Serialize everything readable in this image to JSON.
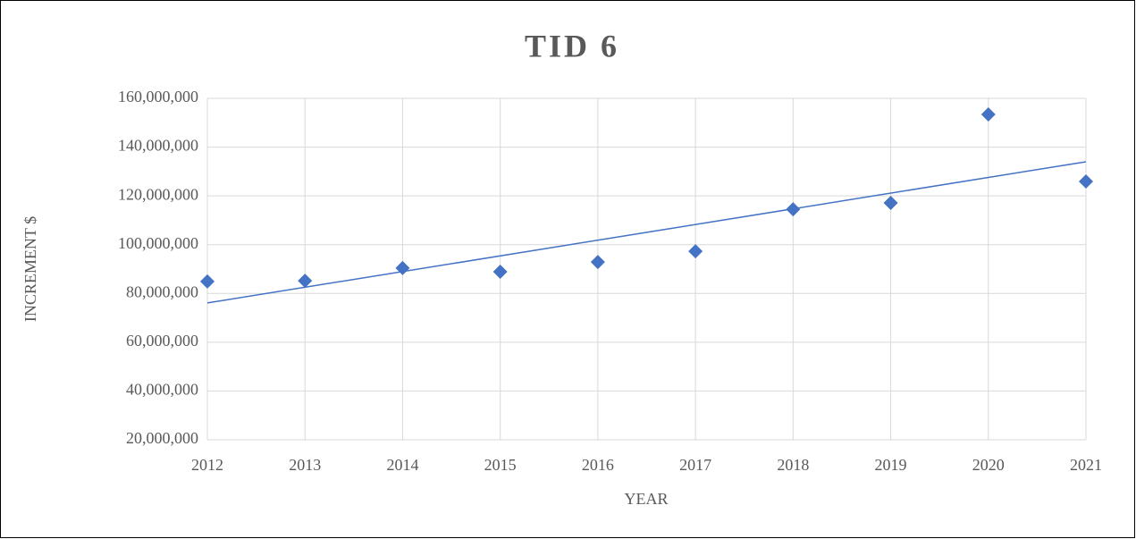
{
  "chart_data": {
    "type": "scatter",
    "title": "TID 6",
    "x_label": "YEAR",
    "y_label": "INCREMENT $",
    "x": [
      2012,
      2013,
      2014,
      2015,
      2016,
      2017,
      2018,
      2019,
      2020,
      2021
    ],
    "series": [
      {
        "name": "Increment",
        "color": "#4472c4",
        "values": [
          84900000,
          85200000,
          90400000,
          88900000,
          92900000,
          97300000,
          114500000,
          117100000,
          153400000,
          125900000
        ]
      }
    ],
    "trendline": "linear",
    "xlim": [
      2012,
      2021
    ],
    "xticks": [
      2012,
      2013,
      2014,
      2015,
      2016,
      2017,
      2018,
      2019,
      2020,
      2021
    ],
    "ylim": [
      20000000,
      160000000
    ],
    "yticks": [
      {
        "value": 20000000,
        "label": "20,000,000"
      },
      {
        "value": 40000000,
        "label": "40,000,000"
      },
      {
        "value": 60000000,
        "label": "60,000,000"
      },
      {
        "value": 80000000,
        "label": "80,000,000"
      },
      {
        "value": 100000000,
        "label": "100,000,000"
      },
      {
        "value": 120000000,
        "label": "120,000,000"
      },
      {
        "value": 140000000,
        "label": "140,000,000"
      },
      {
        "value": 160000000,
        "label": "160,000,000"
      }
    ],
    "grid": true
  }
}
